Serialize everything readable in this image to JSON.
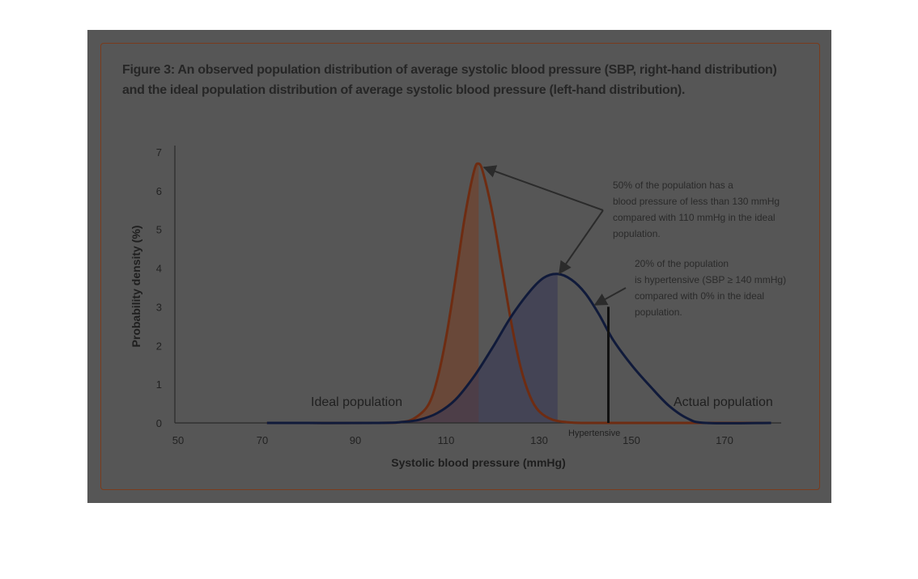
{
  "figure": {
    "title_line1": "Figure 3: An observed population distribution of average systolic blood pressure (SBP, right-hand distribution)",
    "title_line2": "and the ideal population distribution of average systolic blood pressure (left-hand distribution)."
  },
  "chart_data": {
    "type": "line",
    "xlabel": "Systolic blood pressure (mmHg)",
    "ylabel": "Probability density (%)",
    "x_ticks": [
      50,
      70,
      90,
      110,
      130,
      150,
      170
    ],
    "y_ticks": [
      0,
      1,
      2,
      3,
      4,
      5,
      6,
      7
    ],
    "xlim": [
      50,
      180
    ],
    "ylim": [
      0,
      7
    ],
    "series": [
      {
        "name": "Ideal population",
        "color": "#6e2c12",
        "shade_until": 117,
        "x": [
          71,
          95,
          100,
          103,
          106,
          108,
          110,
          112,
          114,
          116,
          117,
          118,
          120,
          122,
          124,
          126,
          128,
          130,
          133,
          137,
          142,
          150,
          180
        ],
        "y": [
          0,
          0,
          0.02,
          0.12,
          0.45,
          1.1,
          2.2,
          3.7,
          5.3,
          6.5,
          6.7,
          6.45,
          5.4,
          4.0,
          2.6,
          1.45,
          0.7,
          0.3,
          0.08,
          0.01,
          0,
          0,
          0
        ]
      },
      {
        "name": "Actual population",
        "color": "#101a3a",
        "shade_until": 134,
        "x": [
          71,
          95,
          100,
          104,
          108,
          112,
          116,
          120,
          124,
          128,
          131,
          134,
          137,
          140,
          143,
          146,
          150,
          154,
          158,
          162,
          166,
          180
        ],
        "y": [
          0,
          0,
          0.02,
          0.08,
          0.25,
          0.6,
          1.2,
          1.95,
          2.75,
          3.4,
          3.75,
          3.85,
          3.7,
          3.35,
          2.8,
          2.15,
          1.5,
          0.95,
          0.45,
          0.12,
          0,
          0
        ]
      }
    ],
    "threshold": {
      "x": 145,
      "y": 3.0,
      "label": "Hypertensive"
    },
    "annotations": [
      {
        "lines": [
          "50% of the population has a",
          "blood pressure of less than 130 mmHg",
          "compared with 110 mmHg in the ideal",
          "population."
        ]
      },
      {
        "lines": [
          "20% of the population",
          "is hypertensive (SBP  ≥ 140 mmHg)",
          "compared with 0% in the ideal",
          "population."
        ]
      }
    ],
    "grid": false,
    "legend": "none"
  }
}
